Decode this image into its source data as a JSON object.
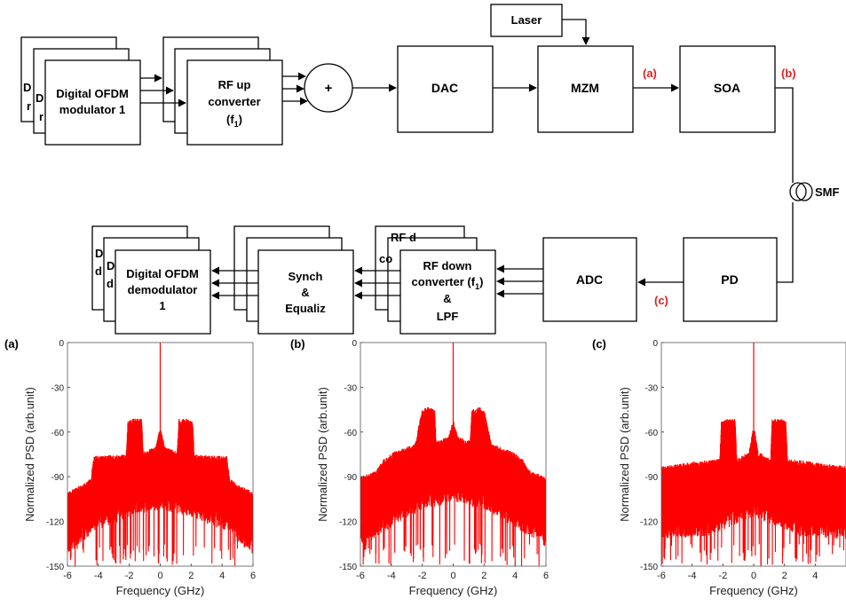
{
  "diagram": {
    "transmitter": {
      "dsp_mod_back_lines": [
        "D",
        "r"
      ],
      "dsp_mod_mid_lines": [
        "D",
        "r"
      ],
      "dsp_mod_lines": [
        "Digital OFDM",
        "modulator 1"
      ],
      "rf_up_lines": [
        "RF up",
        "converter"
      ],
      "rf_up_freq": "(f",
      "rf_up_freq_sub": "1",
      "rf_up_freq_end": ")",
      "combiner": "+",
      "dac": "DAC",
      "laser": "Laser",
      "mzm": "MZM",
      "soa": "SOA"
    },
    "link": {
      "fiber": "SMF"
    },
    "receiver": {
      "pd": "PD",
      "adc": "ADC",
      "rf_down_back_lines": [
        "RF d",
        "co"
      ],
      "rf_down_lines": [
        "RF down",
        "converter (f",
        "&",
        "LPF"
      ],
      "rf_down_sub": "1",
      "rf_down_close": ")",
      "sync_lines": [
        "Synch",
        "&",
        "Equaliz"
      ],
      "dsp_demod_back_lines": [
        "D",
        "d"
      ],
      "dsp_demod_mid_lines": [
        "D",
        "d"
      ],
      "dsp_demod_lines": [
        "Digital OFDM",
        "demodulator",
        "1"
      ]
    },
    "points": {
      "a": "(a)",
      "b": "(b)",
      "c": "(c)"
    }
  },
  "colors": {
    "trace": "#ff0000",
    "label_red": "#e02020",
    "line": "#000000",
    "axis": "#555555"
  },
  "chart_data": [
    {
      "type": "line",
      "panel_label": "(a)",
      "xlabel": "Frequency (GHz)",
      "ylabel": "Normalized PSD (arb.unit)",
      "xlim": [
        -6,
        6
      ],
      "ylim": [
        -150,
        0
      ],
      "xticks": [
        "-6",
        "-4",
        "-2",
        "0",
        "2",
        "4",
        "6"
      ],
      "yticks": [
        "0",
        "-30",
        "-60",
        "-90",
        "-120",
        "-150"
      ],
      "series": [
        {
          "color": "#ff0000",
          "carrier": {
            "freq": 0,
            "peak": 0
          },
          "envelope": [
            [
              -6,
              -102
            ],
            [
              -5,
              -97
            ],
            [
              -4.5,
              -93
            ],
            [
              -4.3,
              -78
            ],
            [
              -2.2,
              -77
            ],
            [
              -2.1,
              -55
            ],
            [
              -1.8,
              -53
            ],
            [
              -1.2,
              -53
            ],
            [
              -1.1,
              -75
            ],
            [
              -0.3,
              -72
            ],
            [
              -0.05,
              -60
            ],
            [
              0.05,
              -60
            ],
            [
              0.3,
              -72
            ],
            [
              1.1,
              -75
            ],
            [
              1.2,
              -53
            ],
            [
              1.8,
              -53
            ],
            [
              2.1,
              -55
            ],
            [
              2.2,
              -77
            ],
            [
              4.3,
              -78
            ],
            [
              4.5,
              -93
            ],
            [
              5,
              -97
            ],
            [
              6,
              -102
            ]
          ],
          "floor": [
            [
              -6,
              -130
            ],
            [
              -4.3,
              -115
            ],
            [
              -2,
              -105
            ],
            [
              0,
              -100
            ],
            [
              2,
              -105
            ],
            [
              4.3,
              -115
            ],
            [
              6,
              -130
            ]
          ]
        }
      ]
    },
    {
      "type": "line",
      "panel_label": "(b)",
      "xlabel": "Frequency (GHz)",
      "ylabel": "Normalized PSD (arb.unit)",
      "xlim": [
        -6,
        6
      ],
      "ylim": [
        -150,
        0
      ],
      "xticks": [
        "-6",
        "-4",
        "-2",
        "0",
        "2",
        "4",
        "6"
      ],
      "yticks": [
        "0",
        "-30",
        "-60",
        "-90",
        "-120",
        "-150"
      ],
      "series": [
        {
          "color": "#ff0000",
          "carrier": {
            "freq": 0,
            "peak": 0
          },
          "envelope": [
            [
              -6,
              -92
            ],
            [
              -5,
              -88
            ],
            [
              -4.5,
              -80
            ],
            [
              -3.8,
              -75
            ],
            [
              -2.5,
              -70
            ],
            [
              -2,
              -47
            ],
            [
              -1.7,
              -45
            ],
            [
              -1.2,
              -47
            ],
            [
              -1.1,
              -68
            ],
            [
              -0.3,
              -65
            ],
            [
              -0.05,
              -55
            ],
            [
              0.05,
              -55
            ],
            [
              0.3,
              -65
            ],
            [
              1.1,
              -68
            ],
            [
              1.2,
              -47
            ],
            [
              1.7,
              -45
            ],
            [
              2,
              -47
            ],
            [
              2.5,
              -70
            ],
            [
              3.8,
              -75
            ],
            [
              4.5,
              -80
            ],
            [
              5,
              -88
            ],
            [
              6,
              -92
            ]
          ],
          "floor": [
            [
              -6,
              -125
            ],
            [
              -4,
              -112
            ],
            [
              -2,
              -100
            ],
            [
              0,
              -95
            ],
            [
              2,
              -100
            ],
            [
              4,
              -112
            ],
            [
              6,
              -125
            ]
          ]
        }
      ]
    },
    {
      "type": "line",
      "panel_label": "(c)",
      "xlabel": "Frequency (GHz)",
      "ylabel": "Normalized PSD (arb.unit)",
      "xlim": [
        -6,
        6
      ],
      "ylim": [
        -150,
        0
      ],
      "xticks": [
        "-6",
        "-4",
        "-2",
        "0",
        "2",
        "4"
      ],
      "yticks": [
        "0",
        "-30",
        "-60",
        "-90",
        "-120",
        "-150"
      ],
      "series": [
        {
          "color": "#ff0000",
          "carrier": {
            "freq": 0,
            "peak": 0
          },
          "envelope": [
            [
              -6,
              -85
            ],
            [
              -4,
              -82
            ],
            [
              -2.2,
              -80
            ],
            [
              -2.1,
              -55
            ],
            [
              -1.8,
              -53
            ],
            [
              -1.2,
              -53
            ],
            [
              -1.1,
              -80
            ],
            [
              -0.3,
              -75
            ],
            [
              -0.05,
              -60
            ],
            [
              0.05,
              -60
            ],
            [
              0.3,
              -75
            ],
            [
              1.1,
              -80
            ],
            [
              1.2,
              -53
            ],
            [
              1.8,
              -53
            ],
            [
              2.1,
              -55
            ],
            [
              2.2,
              -80
            ],
            [
              4,
              -82
            ],
            [
              6,
              -85
            ]
          ],
          "floor": [
            [
              -6,
              -120
            ],
            [
              -3,
              -118
            ],
            [
              0,
              -105
            ],
            [
              3,
              -118
            ],
            [
              6,
              -120
            ]
          ]
        }
      ]
    }
  ]
}
